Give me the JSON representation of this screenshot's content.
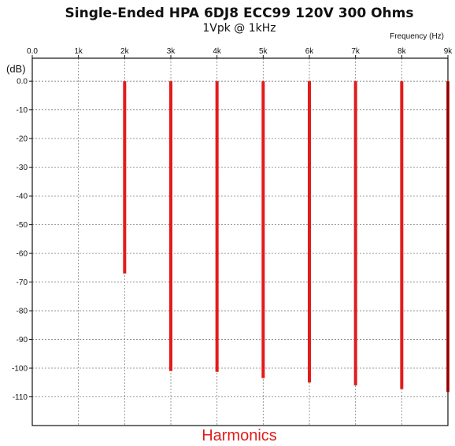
{
  "chart_data": {
    "type": "bar",
    "title": "Single-Ended HPA 6DJ8 ECC99 120V 300 Ohms",
    "subtitle": "1Vpk @ 1kHz",
    "xlabel": "Frequency   (Hz)",
    "ylabel": "(dB)",
    "caption": "Harmonics",
    "xlim": [
      0,
      9000
    ],
    "ylim": [
      -120,
      8
    ],
    "grid": true,
    "legend": "none",
    "x_ticks": [
      {
        "value": 0,
        "label": "0.0"
      },
      {
        "value": 1000,
        "label": "1k"
      },
      {
        "value": 2000,
        "label": "2k"
      },
      {
        "value": 3000,
        "label": "3k"
      },
      {
        "value": 4000,
        "label": "4k"
      },
      {
        "value": 5000,
        "label": "5k"
      },
      {
        "value": 6000,
        "label": "6k"
      },
      {
        "value": 7000,
        "label": "7k"
      },
      {
        "value": 8000,
        "label": "8k"
      },
      {
        "value": 9000,
        "label": "9k"
      }
    ],
    "y_ticks": [
      {
        "value": 0,
        "label": "0.0"
      },
      {
        "value": -10,
        "label": "-10"
      },
      {
        "value": -20,
        "label": "-20"
      },
      {
        "value": -30,
        "label": "-30"
      },
      {
        "value": -40,
        "label": "-40"
      },
      {
        "value": -50,
        "label": "-50"
      },
      {
        "value": -60,
        "label": "-60"
      },
      {
        "value": -70,
        "label": "-70"
      },
      {
        "value": -80,
        "label": "-80"
      },
      {
        "value": -90,
        "label": "-90"
      },
      {
        "value": -100,
        "label": "-100"
      },
      {
        "value": -110,
        "label": "-110"
      }
    ],
    "series": [
      {
        "color": "#e31b1b",
        "baseline": 0,
        "points": [
          {
            "x": 2000,
            "y": -67.0
          },
          {
            "x": 3000,
            "y": -101.0
          },
          {
            "x": 4000,
            "y": -101.3
          },
          {
            "x": 5000,
            "y": -103.5
          },
          {
            "x": 6000,
            "y": -105.0
          },
          {
            "x": 7000,
            "y": -106.0
          },
          {
            "x": 8000,
            "y": -107.3
          },
          {
            "x": 9000,
            "y": -108.3
          }
        ]
      }
    ],
    "colors": {
      "bars": "#e31b1b",
      "caption": "#e31b1b",
      "grid": "#7f7f7f",
      "axis": "#111111"
    }
  }
}
